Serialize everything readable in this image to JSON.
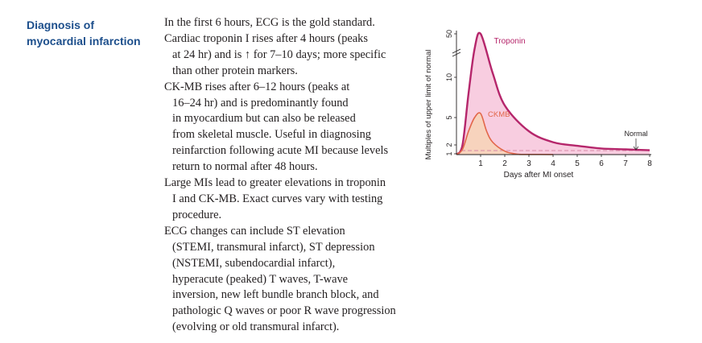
{
  "heading": {
    "line1": "Diagnosis of",
    "line2": "myocardial infarction"
  },
  "paragraphs": [
    {
      "lines": [
        "In the first 6 hours, ECG is the gold standard."
      ]
    },
    {
      "lines": [
        "Cardiac troponin I rises after 4 hours (peaks",
        "at 24 hr) and is ↑ for 7–10 days; more specific",
        "than other protein markers."
      ]
    },
    {
      "lines": [
        "CK-MB rises after 6–12 hours (peaks at",
        "16–24 hr) and is predominantly found",
        "in myocardium but can also be released",
        "from skeletal muscle. Useful in diagnosing",
        "reinfarction following acute MI because levels",
        "return to normal after 48 hours."
      ]
    },
    {
      "lines": [
        "Large MIs lead to greater elevations in troponin",
        "I and CK-MB. Exact curves vary with testing",
        "procedure."
      ]
    },
    {
      "lines": [
        "ECG changes can include ST elevation",
        "(STEMI, transmural infarct), ST depression",
        "(NSTEMI, subendocardial infarct),",
        "hyperacute (peaked) T waves, T-wave",
        "inversion, new left bundle branch block, and",
        "pathologic Q waves or poor R wave progression",
        "(evolving or old transmural infarct)."
      ]
    }
  ],
  "chart_data": {
    "type": "area",
    "xlabel": "Days after MI onset",
    "ylabel": "Multiples of upper limit of normal",
    "x_ticks": [
      "1",
      "2",
      "3",
      "4",
      "5",
      "6",
      "7",
      "8"
    ],
    "y_ticks": [
      "1",
      "2",
      "5",
      "10",
      "50"
    ],
    "y_axis_break": true,
    "series": [
      {
        "name": "Troponin",
        "color": "#b5266b",
        "fill": "#f8cde0",
        "x": [
          0,
          0.25,
          0.5,
          0.75,
          1,
          1.5,
          2,
          3,
          4,
          5,
          6,
          7,
          8
        ],
        "y": [
          0.2,
          2,
          8,
          30,
          50,
          12,
          6.5,
          3.5,
          2.3,
          1.9,
          1.6,
          1.5,
          1.4
        ]
      },
      {
        "name": "CKMB",
        "color": "#e2674a",
        "fill": "#f7d3bd",
        "x": [
          0,
          0.25,
          0.5,
          0.75,
          1,
          1.25,
          1.5,
          2,
          2.5,
          3,
          4
        ],
        "y": [
          0.2,
          1.5,
          3.5,
          5,
          5.5,
          3.5,
          2.3,
          1.3,
          0.6,
          0.25,
          0.1
        ]
      }
    ],
    "reference_line": {
      "label": "Normal",
      "y": 1
    }
  }
}
